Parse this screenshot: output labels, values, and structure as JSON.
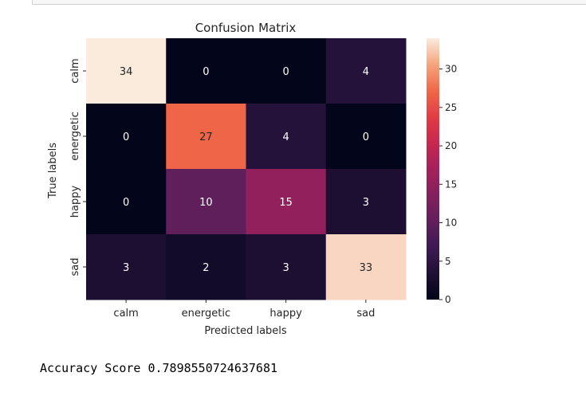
{
  "chart_data": {
    "type": "heatmap",
    "title": "Confusion Matrix",
    "xlabel": "Predicted labels",
    "ylabel": "True labels",
    "x_categories": [
      "calm",
      "energetic",
      "happy",
      "sad"
    ],
    "y_categories": [
      "calm",
      "energetic",
      "happy",
      "sad"
    ],
    "values": [
      [
        34,
        0,
        0,
        4
      ],
      [
        0,
        27,
        4,
        0
      ],
      [
        0,
        10,
        15,
        3
      ],
      [
        3,
        2,
        3,
        33
      ]
    ],
    "colorbar": {
      "range": [
        0,
        34
      ],
      "ticks": [
        0,
        5,
        10,
        15,
        20,
        25,
        30
      ]
    },
    "colormap": "rocket"
  },
  "output": {
    "accuracy_label": "Accuracy Score",
    "accuracy_value": "0.7898550724637681"
  }
}
